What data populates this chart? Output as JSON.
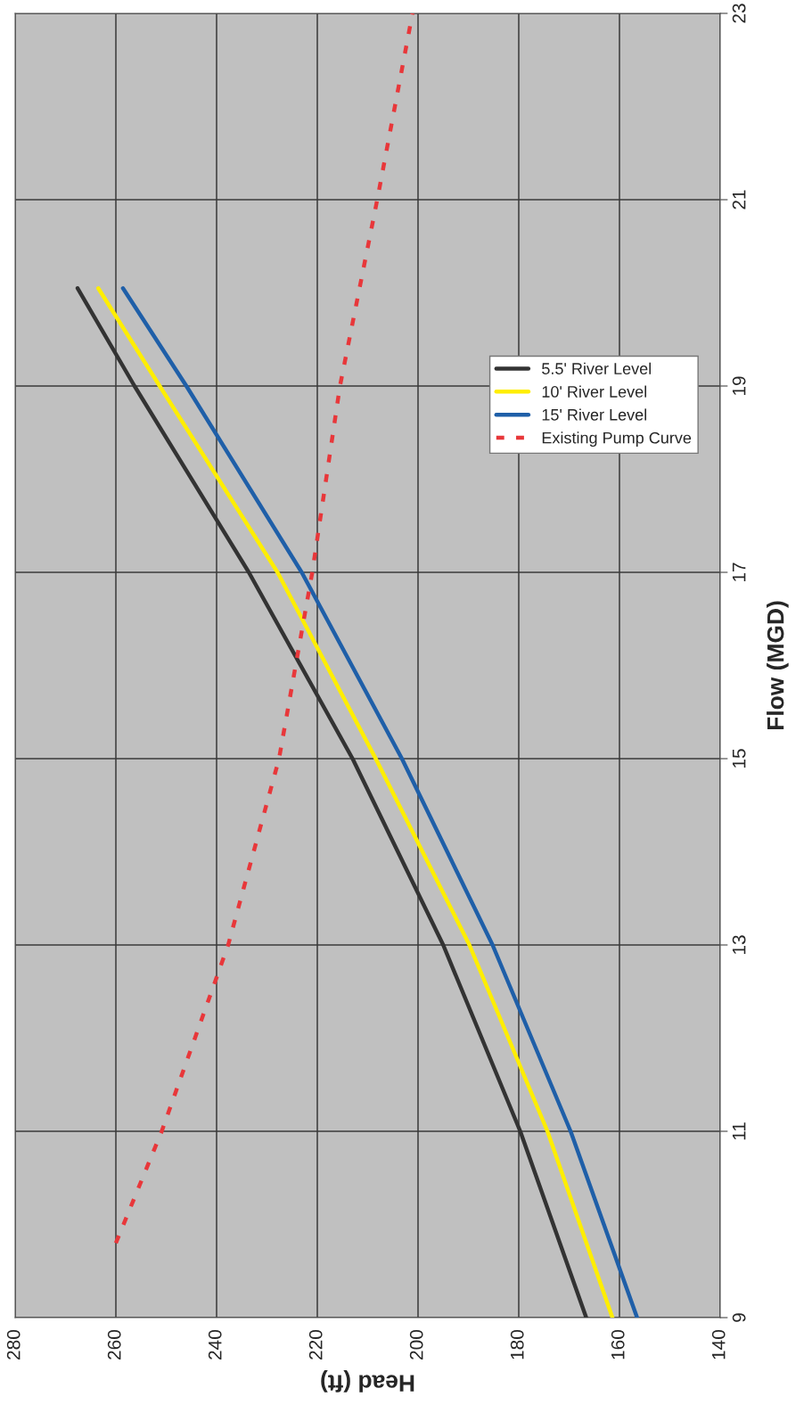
{
  "chart_data": {
    "type": "line",
    "xlabel": "Head (ft)",
    "ylabel": "Flow (MGD)",
    "xlim": [
      280,
      140
    ],
    "xticks": [
      280,
      260,
      240,
      220,
      200,
      180,
      160,
      140
    ],
    "ylim": [
      9,
      23
    ],
    "yticks": [
      9,
      11,
      13,
      15,
      17,
      19,
      21,
      23
    ],
    "grid": true,
    "legend": "right",
    "marker": "none",
    "series": [
      {
        "name": "5.5' River Level",
        "color": "#333333",
        "line_style": "solid",
        "x": [
          166.6,
          179.7,
          195,
          213,
          233.6,
          256.3,
          267.6
        ],
        "values": [
          9,
          11,
          13,
          15,
          17,
          19,
          20.05
        ]
      },
      {
        "name": "10' River Level",
        "color": "#ffee00",
        "line_style": "solid",
        "x": [
          161.4,
          174.3,
          189.8,
          208.4,
          227.9,
          251.3,
          263.5
        ],
        "values": [
          9,
          11,
          13,
          15,
          17,
          19,
          20.05
        ]
      },
      {
        "name": "15' River Level",
        "color": "#1f5fa8",
        "line_style": "solid",
        "x": [
          156.5,
          169.7,
          185.2,
          203.2,
          223.1,
          246,
          258.6
        ],
        "values": [
          9,
          11,
          13,
          15,
          17,
          19,
          20.05
        ]
      },
      {
        "name": "Existing Pump Curve",
        "color": "#e8373a",
        "line_style": "dotted",
        "x": [
          260,
          250.9,
          237.7,
          227.6,
          221,
          215.5,
          208.1,
          201.1
        ],
        "values": [
          9.8,
          11,
          13,
          15,
          17,
          19,
          21,
          23
        ]
      }
    ]
  }
}
